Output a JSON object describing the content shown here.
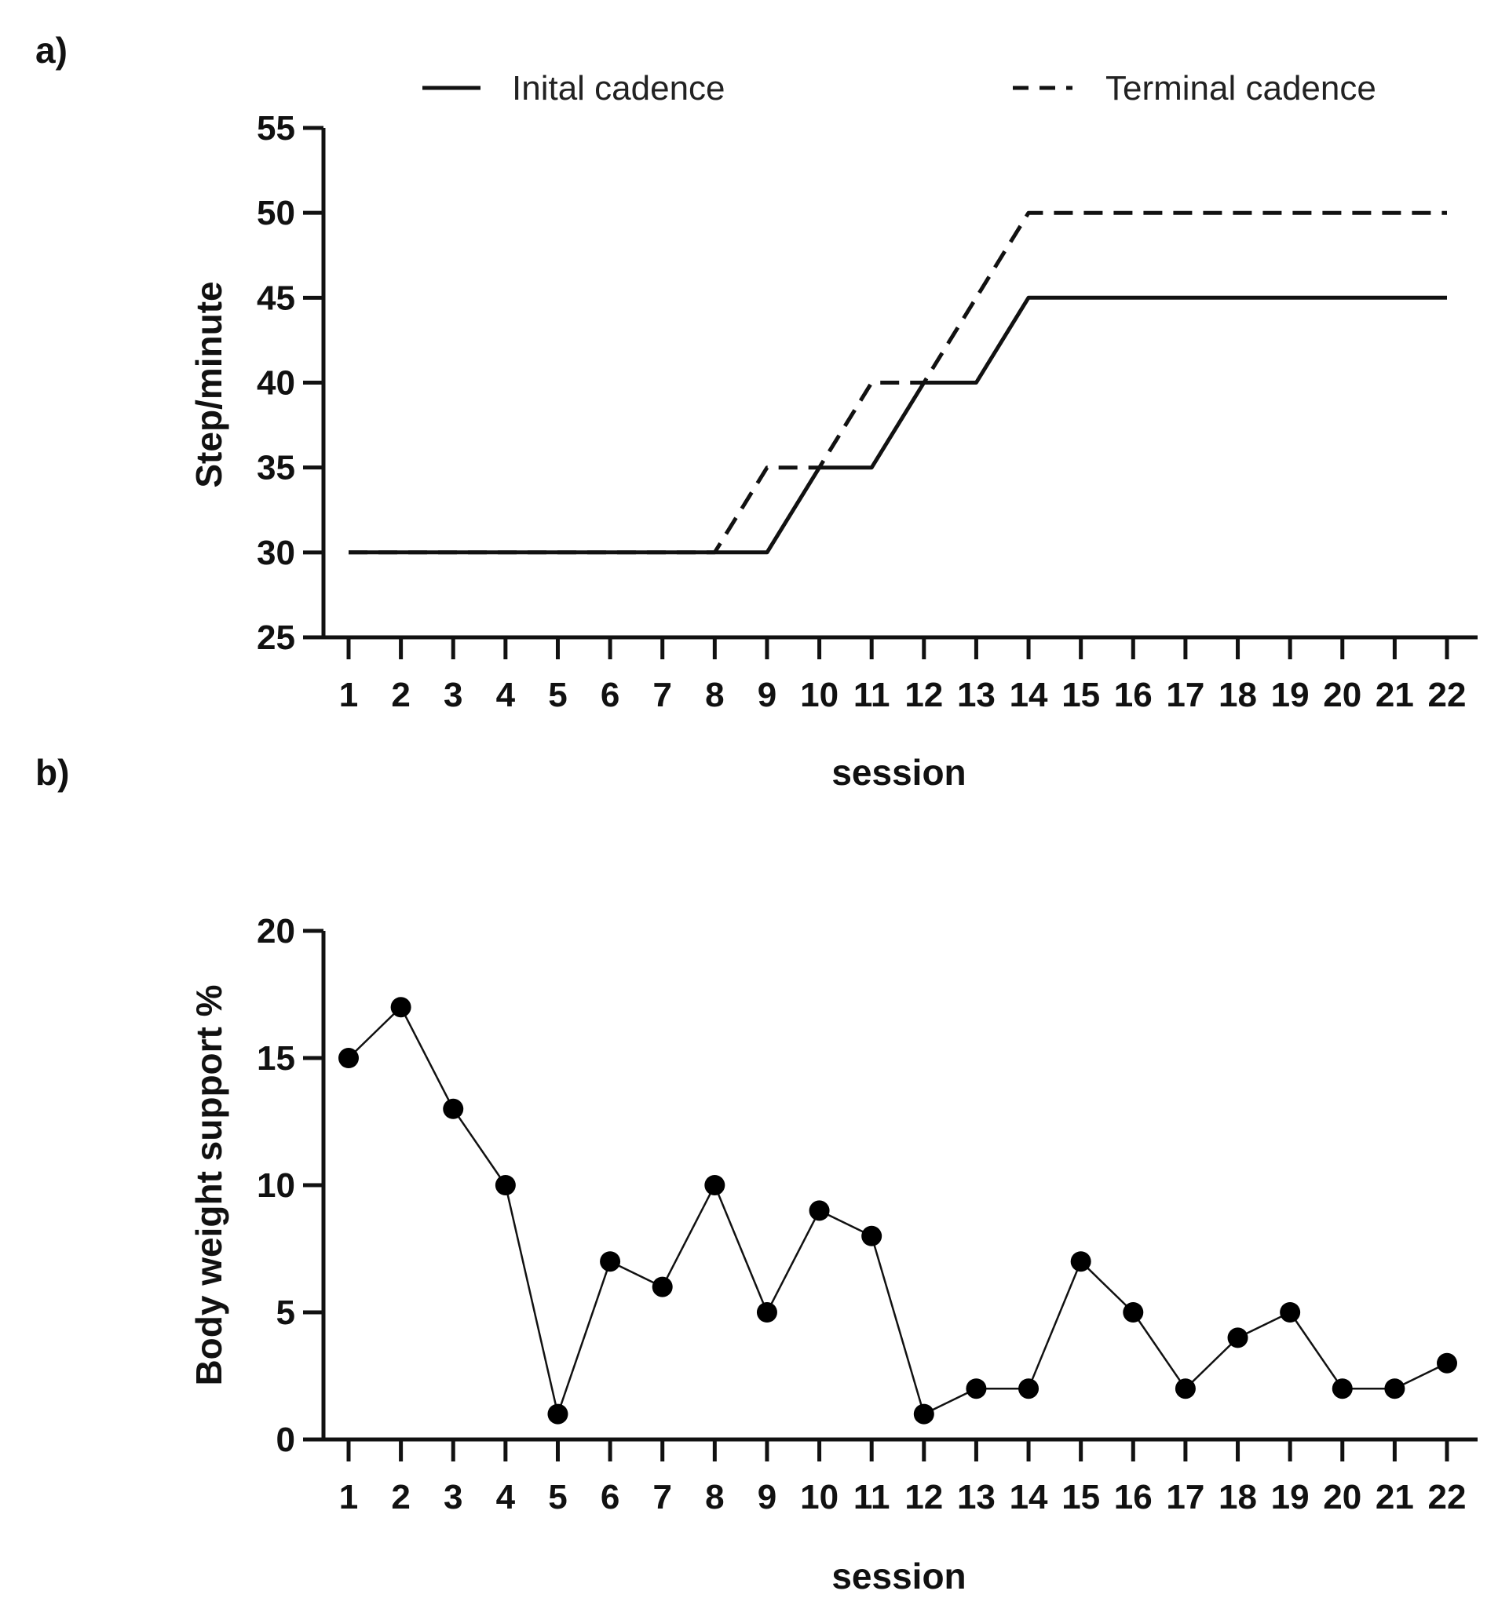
{
  "chart_data": [
    {
      "panel": "a)",
      "type": "line",
      "xlabel": "session",
      "ylabel": "Step/minute",
      "ylim": [
        25,
        55
      ],
      "yticks": [
        25,
        30,
        35,
        40,
        45,
        50,
        55
      ],
      "categories": [
        "1",
        "2",
        "3",
        "4",
        "5",
        "6",
        "7",
        "8",
        "9",
        "10",
        "11",
        "12",
        "13",
        "14",
        "15",
        "16",
        "17",
        "18",
        "19",
        "20",
        "21",
        "22"
      ],
      "legend": "top",
      "series": [
        {
          "name": "Inital cadence",
          "style": "solid",
          "values": [
            30,
            30,
            30,
            30,
            30,
            30,
            30,
            30,
            30,
            35,
            35,
            40,
            40,
            45,
            45,
            45,
            45,
            45,
            45,
            45,
            45,
            45
          ]
        },
        {
          "name": "Terminal cadence",
          "style": "dashed",
          "values": [
            30,
            30,
            30,
            30,
            30,
            30,
            30,
            30,
            35,
            35,
            40,
            40,
            45,
            50,
            50,
            50,
            50,
            50,
            50,
            50,
            50,
            50
          ]
        }
      ]
    },
    {
      "panel": "b)",
      "type": "line",
      "xlabel": "session",
      "ylabel": "Body weight support %",
      "ylim": [
        0,
        20
      ],
      "yticks": [
        0,
        5,
        10,
        15,
        20
      ],
      "categories": [
        "1",
        "2",
        "3",
        "4",
        "5",
        "6",
        "7",
        "8",
        "9",
        "10",
        "11",
        "12",
        "13",
        "14",
        "15",
        "16",
        "17",
        "18",
        "19",
        "20",
        "21",
        "22"
      ],
      "markers": true,
      "series": [
        {
          "name": "Body weight support",
          "style": "solid",
          "values": [
            15,
            17,
            13,
            10,
            1,
            7,
            6,
            10,
            5,
            9,
            8,
            1,
            2,
            2,
            7,
            5,
            2,
            4,
            5,
            2,
            2,
            3
          ]
        }
      ]
    }
  ]
}
